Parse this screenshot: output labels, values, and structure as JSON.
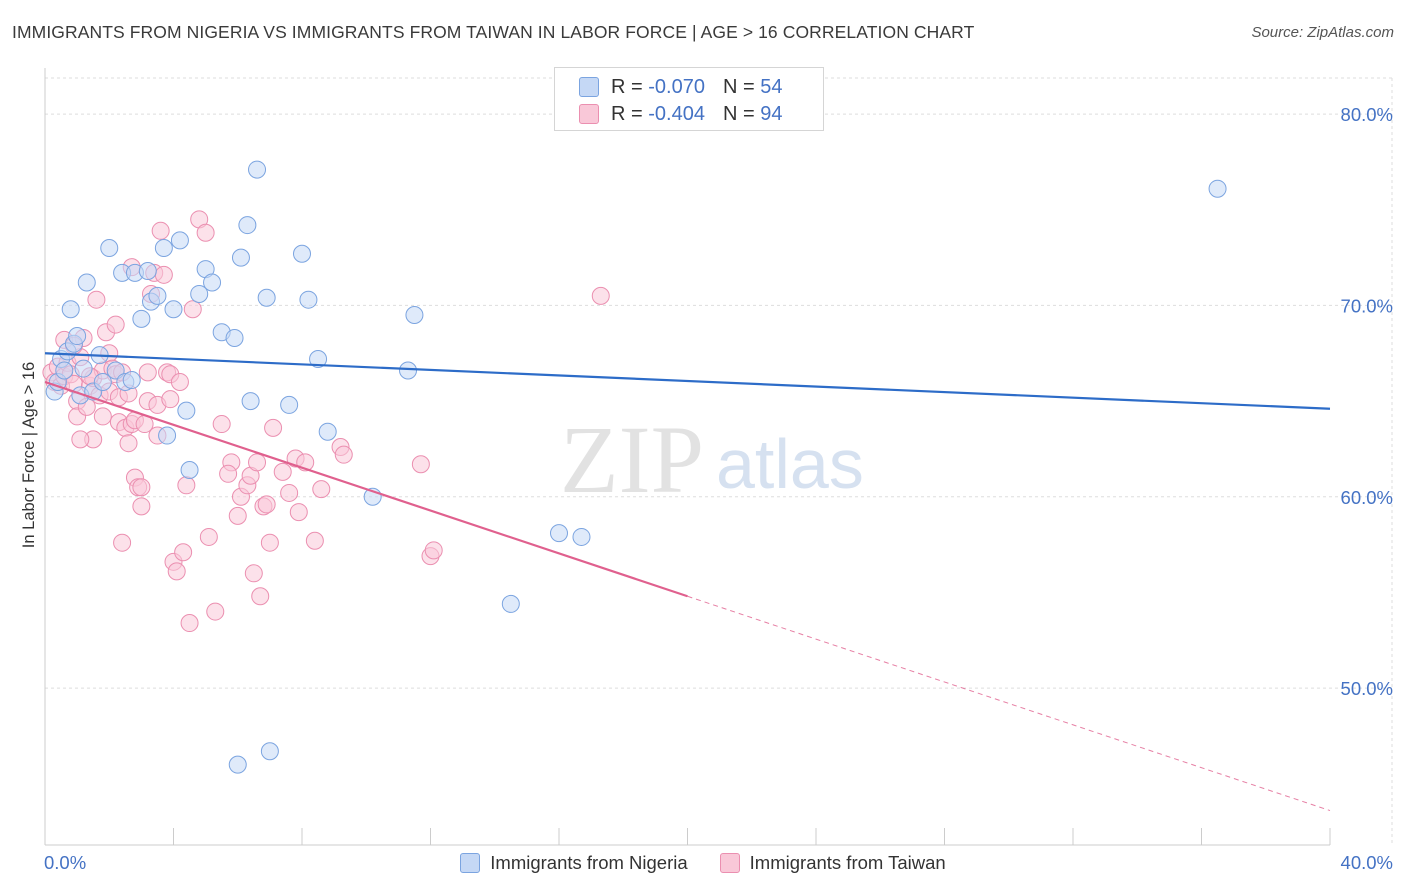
{
  "header": {
    "title": "IMMIGRANTS FROM NIGERIA VS IMMIGRANTS FROM TAIWAN IN LABOR FORCE | AGE > 16 CORRELATION CHART",
    "source": "Source: ZipAtlas.com"
  },
  "watermark": {
    "zip": "ZIP",
    "atlas": "atlas"
  },
  "legend": {
    "nigeria": {
      "r_label": "R =",
      "r_value": "-0.070",
      "n_label": "N =",
      "n_value": "54"
    },
    "taiwan": {
      "r_label": "R =",
      "r_value": "-0.404",
      "n_label": "N =",
      "n_value": "94"
    }
  },
  "bottom_legend": {
    "nigeria": "Immigrants from Nigeria",
    "taiwan": "Immigrants from Taiwan"
  },
  "colors": {
    "nigeria_fill": "#c5d8f5",
    "nigeria_stroke": "#7ba4e0",
    "nigeria_line": "#2d6cc8",
    "taiwan_fill": "#f9c8d8",
    "taiwan_stroke": "#eb8fb0",
    "taiwan_line": "#e0608e",
    "axis_label": "#4472c4",
    "grid": "#dddddd"
  },
  "chart_data": {
    "type": "scatter",
    "title": "IMMIGRANTS FROM NIGERIA VS IMMIGRANTS FROM TAIWAN IN LABOR FORCE | AGE > 16 CORRELATION CHART",
    "xlabel": "",
    "ylabel": "In Labor Force | Age > 16",
    "xlim": [
      0,
      40
    ],
    "ylim": [
      41.8,
      82.2
    ],
    "x_tick_labels": [
      "0.0%",
      "40.0%"
    ],
    "y_ticks": [
      50,
      60,
      70,
      80
    ],
    "y_tick_labels": [
      "50.0%",
      "60.0%",
      "70.0%",
      "80.0%"
    ],
    "grid": true,
    "series": [
      {
        "name": "Immigrants from Nigeria",
        "r": -0.07,
        "n": 54,
        "trend": {
          "x": [
            0,
            40
          ],
          "y": [
            67.5,
            64.6
          ],
          "dashed_x": null
        },
        "points": [
          [
            0.3,
            65.5
          ],
          [
            0.4,
            66.0
          ],
          [
            0.5,
            67.2
          ],
          [
            0.6,
            66.6
          ],
          [
            0.7,
            67.6
          ],
          [
            0.8,
            69.8
          ],
          [
            0.9,
            68.0
          ],
          [
            1.0,
            68.4
          ],
          [
            1.1,
            65.3
          ],
          [
            1.2,
            66.7
          ],
          [
            1.3,
            71.2
          ],
          [
            1.5,
            65.5
          ],
          [
            1.7,
            67.4
          ],
          [
            1.8,
            66.0
          ],
          [
            2.0,
            73.0
          ],
          [
            2.2,
            66.6
          ],
          [
            2.4,
            71.7
          ],
          [
            2.5,
            66.0
          ],
          [
            2.7,
            66.1
          ],
          [
            2.8,
            71.7
          ],
          [
            3.0,
            69.3
          ],
          [
            3.2,
            71.8
          ],
          [
            3.3,
            70.2
          ],
          [
            3.5,
            70.5
          ],
          [
            3.7,
            73.0
          ],
          [
            3.8,
            63.2
          ],
          [
            4.0,
            69.8
          ],
          [
            4.2,
            73.4
          ],
          [
            4.4,
            64.5
          ],
          [
            4.5,
            61.4
          ],
          [
            4.8,
            70.6
          ],
          [
            5.0,
            71.9
          ],
          [
            5.2,
            71.2
          ],
          [
            5.5,
            68.6
          ],
          [
            5.9,
            68.3
          ],
          [
            6.1,
            72.5
          ],
          [
            6.3,
            74.2
          ],
          [
            6.4,
            65.0
          ],
          [
            6.6,
            77.1
          ],
          [
            6.9,
            70.4
          ],
          [
            7.0,
            46.7
          ],
          [
            7.6,
            64.8
          ],
          [
            8.0,
            72.7
          ],
          [
            8.2,
            70.3
          ],
          [
            8.5,
            67.2
          ],
          [
            8.8,
            63.4
          ],
          [
            10.2,
            60.0
          ],
          [
            11.3,
            66.6
          ],
          [
            11.5,
            69.5
          ],
          [
            14.5,
            54.4
          ],
          [
            16.0,
            58.1
          ],
          [
            16.7,
            57.9
          ],
          [
            36.5,
            76.1
          ],
          [
            6.0,
            46.0
          ]
        ]
      },
      {
        "name": "Immigrants from Taiwan",
        "r": -0.404,
        "n": 94,
        "trend": {
          "x": [
            0,
            20
          ],
          "y": [
            66.0,
            54.8
          ],
          "dashed_x": [
            20,
            40
          ],
          "dashed_y": [
            54.8,
            43.6
          ]
        },
        "points": [
          [
            0.2,
            66.5
          ],
          [
            0.3,
            66.0
          ],
          [
            0.4,
            66.8
          ],
          [
            0.5,
            65.8
          ],
          [
            0.6,
            66.3
          ],
          [
            0.6,
            68.2
          ],
          [
            0.7,
            67.0
          ],
          [
            0.8,
            66.4
          ],
          [
            0.9,
            65.9
          ],
          [
            1.0,
            65.0
          ],
          [
            1.0,
            64.2
          ],
          [
            1.1,
            67.3
          ],
          [
            1.2,
            68.3
          ],
          [
            1.3,
            64.7
          ],
          [
            1.4,
            65.8
          ],
          [
            1.5,
            66.2
          ],
          [
            1.5,
            63.0
          ],
          [
            1.6,
            70.3
          ],
          [
            1.7,
            65.3
          ],
          [
            1.8,
            66.6
          ],
          [
            1.8,
            64.2
          ],
          [
            1.9,
            68.6
          ],
          [
            2.0,
            67.5
          ],
          [
            2.0,
            65.5
          ],
          [
            2.1,
            66.7
          ],
          [
            2.2,
            66.4
          ],
          [
            2.2,
            69.0
          ],
          [
            2.3,
            63.9
          ],
          [
            2.3,
            65.2
          ],
          [
            2.4,
            57.6
          ],
          [
            2.4,
            66.5
          ],
          [
            2.5,
            63.6
          ],
          [
            2.6,
            62.8
          ],
          [
            2.6,
            65.4
          ],
          [
            2.7,
            63.8
          ],
          [
            2.8,
            61.0
          ],
          [
            2.8,
            64.0
          ],
          [
            2.9,
            60.5
          ],
          [
            3.0,
            60.5
          ],
          [
            3.0,
            59.5
          ],
          [
            3.1,
            63.8
          ],
          [
            3.2,
            66.5
          ],
          [
            3.2,
            65.0
          ],
          [
            3.3,
            70.6
          ],
          [
            3.4,
            71.7
          ],
          [
            3.5,
            64.8
          ],
          [
            3.5,
            63.2
          ],
          [
            3.6,
            73.9
          ],
          [
            3.7,
            71.6
          ],
          [
            3.8,
            66.5
          ],
          [
            3.9,
            66.4
          ],
          [
            4.0,
            56.6
          ],
          [
            4.1,
            56.1
          ],
          [
            4.3,
            57.1
          ],
          [
            4.4,
            60.6
          ],
          [
            4.5,
            53.4
          ],
          [
            4.6,
            69.8
          ],
          [
            4.8,
            74.5
          ],
          [
            5.0,
            73.8
          ],
          [
            5.1,
            57.9
          ],
          [
            5.3,
            54.0
          ],
          [
            5.5,
            63.8
          ],
          [
            5.8,
            61.8
          ],
          [
            6.1,
            60.0
          ],
          [
            6.3,
            60.6
          ],
          [
            6.4,
            61.1
          ],
          [
            6.5,
            56.0
          ],
          [
            6.6,
            61.8
          ],
          [
            6.7,
            54.8
          ],
          [
            6.8,
            59.5
          ],
          [
            6.9,
            59.6
          ],
          [
            7.0,
            57.6
          ],
          [
            7.1,
            63.6
          ],
          [
            7.4,
            61.3
          ],
          [
            7.6,
            60.2
          ],
          [
            7.8,
            62.0
          ],
          [
            7.9,
            59.2
          ],
          [
            8.1,
            61.8
          ],
          [
            8.4,
            57.7
          ],
          [
            9.2,
            62.6
          ],
          [
            9.3,
            62.2
          ],
          [
            11.7,
            61.7
          ],
          [
            12.0,
            56.9
          ],
          [
            12.1,
            57.2
          ],
          [
            17.3,
            70.5
          ],
          [
            1.4,
            66.3
          ],
          [
            3.9,
            65.1
          ],
          [
            2.7,
            72.0
          ],
          [
            6.0,
            59.0
          ],
          [
            1.1,
            63.0
          ],
          [
            0.9,
            67.9
          ],
          [
            4.2,
            66.0
          ],
          [
            5.7,
            61.2
          ],
          [
            8.6,
            60.4
          ]
        ]
      }
    ]
  }
}
